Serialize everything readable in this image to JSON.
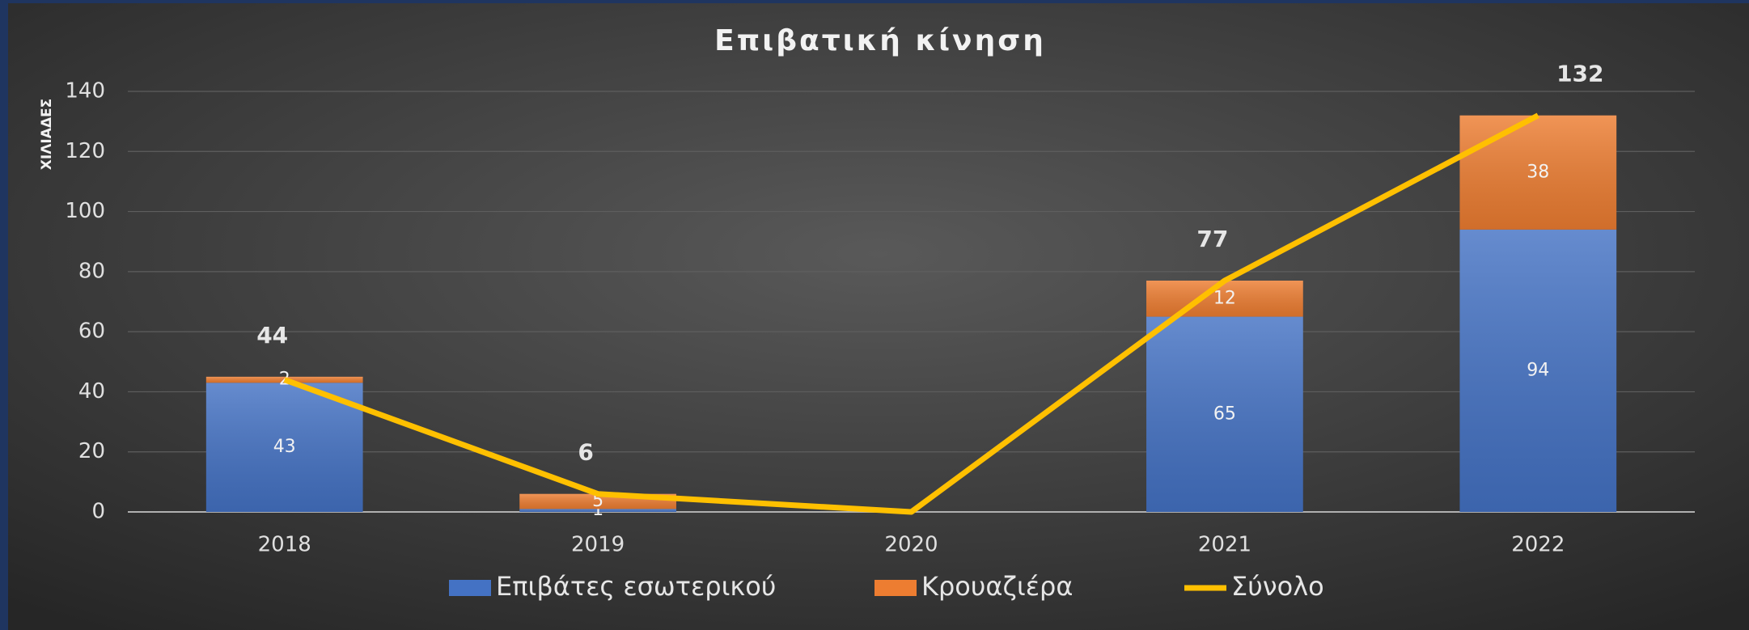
{
  "chart_data": {
    "type": "bar",
    "stacked": true,
    "title": "Επιβατική κίνηση",
    "y_label": "ΧΙΛΙΑΔΕΣ",
    "categories": [
      "2018",
      "2019",
      "2020",
      "2021",
      "2022"
    ],
    "series": [
      {
        "name": "Επιβάτες εσωτερικού",
        "type": "bar",
        "color": "#4472c4",
        "values": [
          43,
          1,
          0,
          65,
          94
        ],
        "value_labels": [
          "43",
          "1",
          null,
          "65",
          "94"
        ]
      },
      {
        "name": "Κρουαζιέρα",
        "type": "bar",
        "color": "#ed7d31",
        "values": [
          2,
          5,
          0,
          12,
          38
        ],
        "value_labels": [
          "2",
          "5",
          null,
          "12",
          "38"
        ]
      },
      {
        "name": "Σύνολο",
        "type": "line",
        "color": "#ffc000",
        "values": [
          44,
          6,
          0,
          77,
          132
        ],
        "value_labels": [
          "44",
          "6",
          null,
          "77",
          "132"
        ]
      }
    ],
    "ylim": [
      0,
      140
    ],
    "yticks": [
      0,
      20,
      40,
      60,
      80,
      100,
      120,
      140
    ],
    "grid": true,
    "legend": "bottom"
  }
}
